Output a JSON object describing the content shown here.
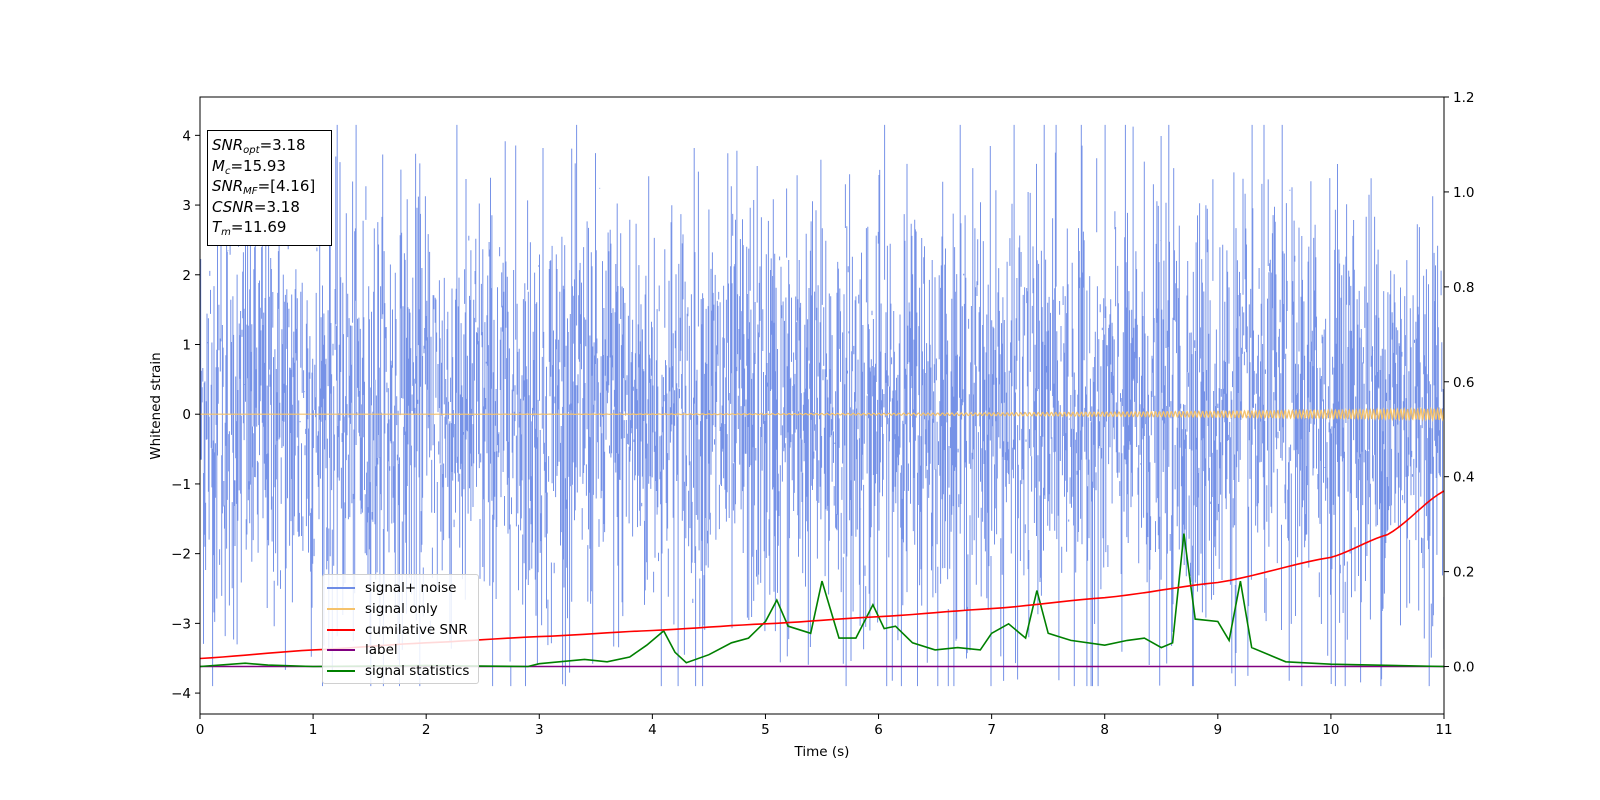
{
  "chart_data": {
    "type": "line",
    "title": "",
    "xlabel": "Time (s)",
    "ylabel": "Whitened strain",
    "xlim": [
      0,
      11
    ],
    "ylim": [
      -4.3,
      4.55
    ],
    "y2lim": [
      -0.1,
      1.2
    ],
    "x_ticks": [
      "0",
      "1",
      "2",
      "3",
      "4",
      "5",
      "6",
      "7",
      "8",
      "9",
      "10",
      "11"
    ],
    "y_ticks": [
      "−4",
      "−3",
      "−2",
      "−1",
      "0",
      "1",
      "2",
      "3",
      "4"
    ],
    "y2_ticks": [
      "0.0",
      "0.2",
      "0.4",
      "0.6",
      "0.8",
      "1.0",
      "1.2"
    ],
    "grid": false,
    "legend_position": "lower-left",
    "series": [
      {
        "name": "signal+ noise",
        "axis": "left",
        "color": "#6f8de6",
        "style": "noise-band",
        "std": 1.0,
        "approx_range": [
          -3.9,
          4.2
        ]
      },
      {
        "name": "signal only",
        "axis": "left",
        "color": "#f5c26b",
        "style": "chirp",
        "amplitude_end": 0.08
      },
      {
        "name": "cumilative SNR",
        "axis": "right",
        "color": "#ff0000",
        "x": [
          0,
          1,
          2,
          3,
          4,
          5,
          6,
          7,
          8,
          9,
          10,
          10.5,
          11
        ],
        "values": [
          0.017,
          0.035,
          0.05,
          0.063,
          0.076,
          0.09,
          0.105,
          0.122,
          0.145,
          0.177,
          0.23,
          0.278,
          0.37
        ]
      },
      {
        "name": "label",
        "axis": "right",
        "color": "#800080",
        "x": [
          0,
          11
        ],
        "values": [
          0.0,
          0.0
        ]
      },
      {
        "name": "signal statistics",
        "axis": "right",
        "color": "#008000",
        "x": [
          0,
          0.4,
          0.6,
          1.0,
          2.0,
          2.9,
          3.0,
          3.4,
          3.6,
          3.8,
          3.95,
          4.1,
          4.2,
          4.3,
          4.5,
          4.7,
          4.85,
          5.0,
          5.1,
          5.2,
          5.4,
          5.5,
          5.65,
          5.8,
          5.95,
          6.05,
          6.15,
          6.3,
          6.5,
          6.7,
          6.9,
          7.0,
          7.15,
          7.3,
          7.4,
          7.5,
          7.7,
          8.0,
          8.2,
          8.35,
          8.5,
          8.6,
          8.7,
          8.8,
          9.0,
          9.1,
          9.2,
          9.3,
          9.6,
          10.0,
          11.0
        ],
        "values": [
          0.0,
          0.007,
          0.003,
          0.0,
          0.002,
          0.0,
          0.006,
          0.015,
          0.01,
          0.02,
          0.045,
          0.075,
          0.03,
          0.008,
          0.025,
          0.05,
          0.06,
          0.095,
          0.14,
          0.085,
          0.07,
          0.18,
          0.06,
          0.06,
          0.13,
          0.08,
          0.085,
          0.05,
          0.035,
          0.04,
          0.035,
          0.07,
          0.09,
          0.06,
          0.16,
          0.07,
          0.055,
          0.045,
          0.055,
          0.06,
          0.04,
          0.05,
          0.28,
          0.1,
          0.095,
          0.055,
          0.18,
          0.04,
          0.01,
          0.005,
          0.0
        ]
      }
    ]
  },
  "info_box": {
    "snr_opt_label": "SNR",
    "snr_opt_sub": "opt",
    "snr_opt_value": "=3.18",
    "mc_label": "M",
    "mc_sub": "c",
    "mc_value": "=15.93",
    "snr_mf_label": "SNR",
    "snr_mf_sub": "MF",
    "snr_mf_value": "=[4.16]",
    "csnr_label": "CSNR",
    "csnr_value": "=3.18",
    "tm_label": "T",
    "tm_sub": "m",
    "tm_value": "=11.69"
  },
  "legend": {
    "items": [
      {
        "label": "signal+ noise",
        "color": "#6f8de6"
      },
      {
        "label": "signal only",
        "color": "#f5c26b"
      },
      {
        "label": "cumilative SNR",
        "color": "#ff0000"
      },
      {
        "label": "label",
        "color": "#800080"
      },
      {
        "label": "signal statistics",
        "color": "#008000"
      }
    ]
  }
}
